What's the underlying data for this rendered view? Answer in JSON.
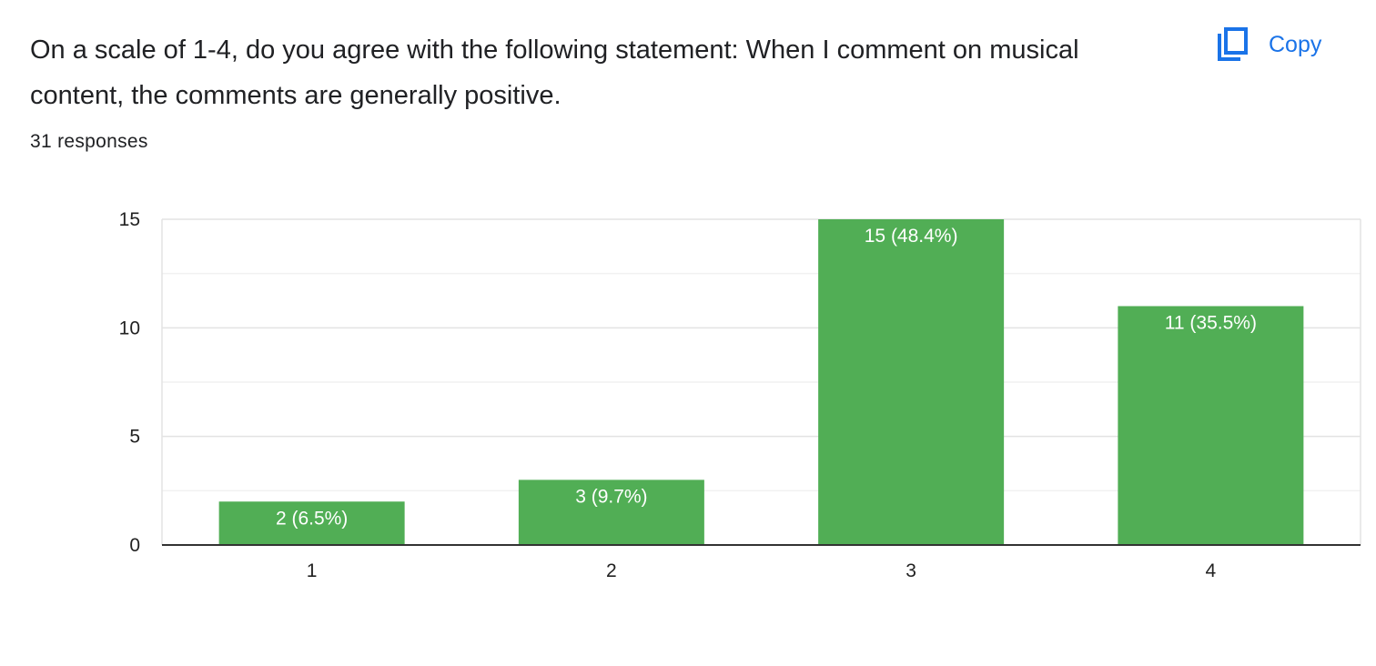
{
  "question": {
    "title": "On a scale of 1-4, do you agree with the following statement: When I comment on musical content, the comments are generally positive.",
    "responses_label": "31 responses"
  },
  "copy_button": {
    "label": "Copy",
    "icon": "copy-icon",
    "color": "#1a73e8"
  },
  "chart_data": {
    "type": "bar",
    "title": "",
    "xlabel": "",
    "ylabel": "",
    "categories": [
      "1",
      "2",
      "3",
      "4"
    ],
    "values": [
      2,
      3,
      15,
      11
    ],
    "data_labels": [
      "2 (6.5%)",
      "3 (9.7%)",
      "15 (48.4%)",
      "11 (35.5%)"
    ],
    "ylim": [
      0,
      15
    ],
    "yticks": [
      0,
      5,
      10,
      15
    ],
    "minor_gridlines": [
      2.5,
      7.5,
      12.5
    ],
    "grid": true,
    "bar_color": "#51ae55"
  }
}
